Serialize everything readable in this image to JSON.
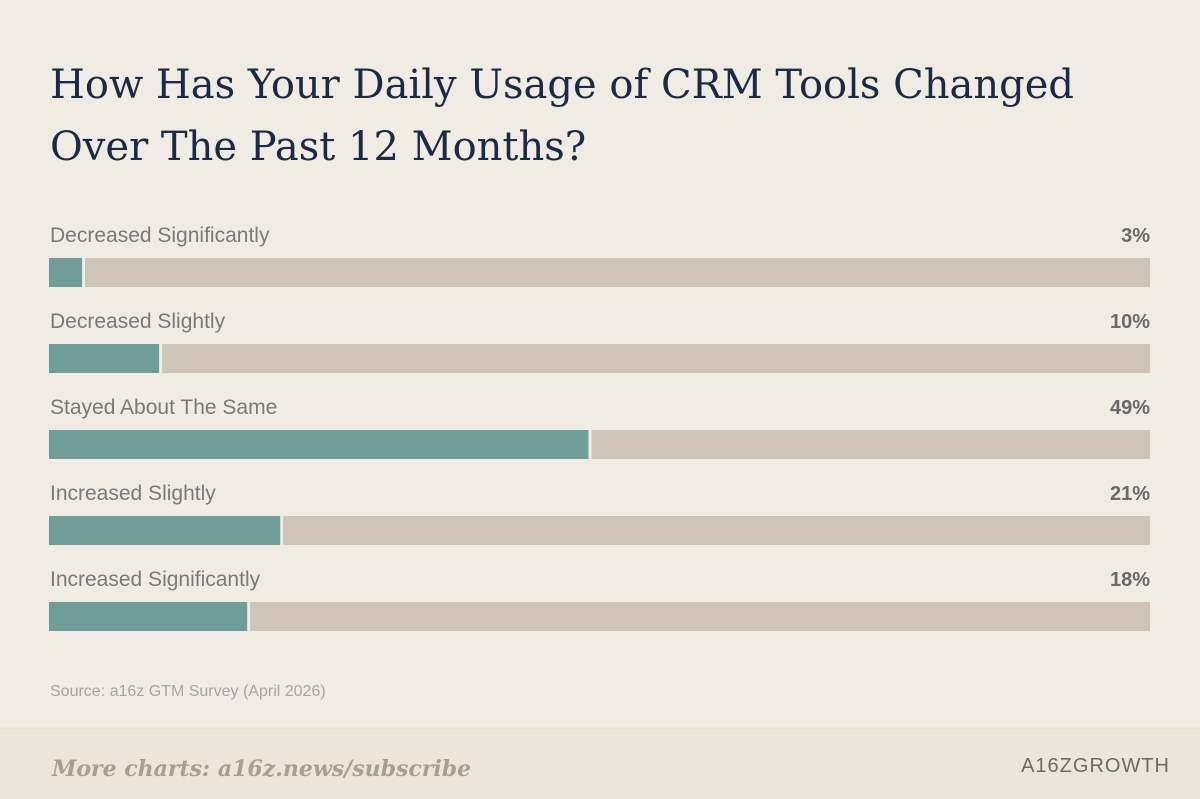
{
  "chart_data": {
    "type": "progress-bar",
    "title": "How Has Your Daily Usage of CRM Tools Changed Over The Past 12 Months?",
    "categories": [
      "Decreased Significantly",
      "Decreased Slightly",
      "Stayed About The Same",
      "Increased Slightly",
      "Increased Significantly"
    ],
    "values": [
      3,
      10,
      49,
      21,
      18
    ],
    "value_labels": [
      "3%",
      "10%",
      "49%",
      "21%",
      "18%"
    ],
    "color": "#6f9e99",
    "track_color": "#cec5b8",
    "xlim": [
      0,
      100
    ],
    "source": "Source: a16z GTM Survey (April 2026)",
    "footer": "More charts: a16z.news/subscribe",
    "brand": "A16ZGROWTH"
  }
}
